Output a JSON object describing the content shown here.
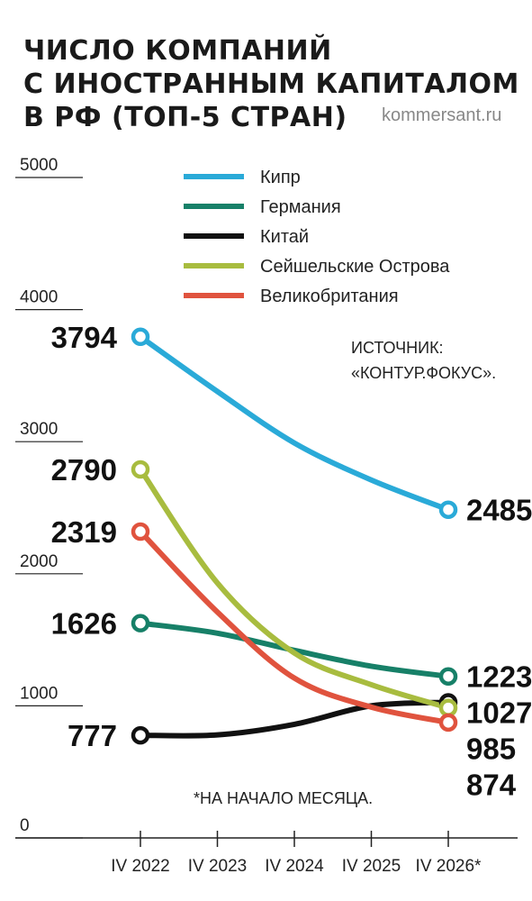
{
  "title_lines": [
    "ЧИСЛО КОМПАНИЙ",
    "С ИНОСТРАННЫМ КАПИТАЛОМ",
    "В РФ (ТОП-5 СТРАН)"
  ],
  "credit": "kommersant.ru",
  "source_lines": [
    "ИСТОЧНИК:",
    "«КОНТУР.ФОКУС»."
  ],
  "footnote": "*НА НАЧАЛО МЕСЯЦА.",
  "chart_data": {
    "type": "line",
    "title": "ЧИСЛО КОМПАНИЙ С ИНОСТРАННЫМ КАПИТАЛОМ В РФ (ТОП-5 СТРАН)",
    "xlabel": "",
    "ylabel": "",
    "x": [
      "IV 2022",
      "IV 2023",
      "IV 2024",
      "IV 2025",
      "IV 2026*"
    ],
    "ylim": [
      0,
      5000
    ],
    "yticks": [
      "0",
      "1000",
      "2000",
      "3000",
      "4000",
      "5000"
    ],
    "legend_position": "top",
    "series": [
      {
        "name": "Кипр",
        "color": "#2aaad8",
        "values": [
          3794,
          3380,
          2990,
          2710,
          2485
        ],
        "start_label": "3794",
        "end_label": "2485"
      },
      {
        "name": "Германия",
        "color": "#178068",
        "values": [
          1626,
          1550,
          1420,
          1300,
          1223
        ],
        "start_label": "1626",
        "end_label": "1223"
      },
      {
        "name": "Китай",
        "color": "#111111",
        "values": [
          777,
          780,
          860,
          1000,
          1027
        ],
        "start_label": "777",
        "end_label": "1027"
      },
      {
        "name": "Сейшельские Острова",
        "color": "#a8bc3f",
        "values": [
          2790,
          1930,
          1400,
          1160,
          985
        ],
        "start_label": "2790",
        "end_label": "985"
      },
      {
        "name": "Великобритания",
        "color": "#e0533e",
        "values": [
          2319,
          1710,
          1210,
          990,
          874
        ],
        "start_label": "2319",
        "end_label": "874"
      }
    ]
  }
}
